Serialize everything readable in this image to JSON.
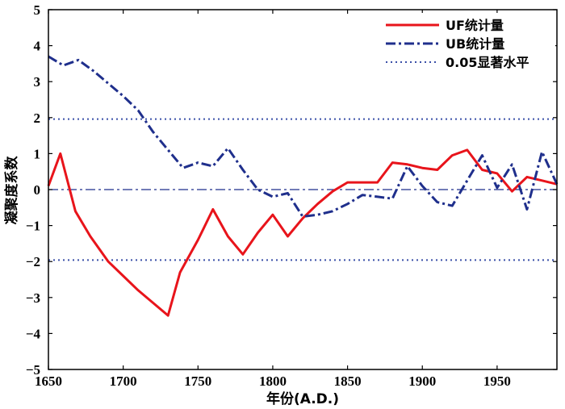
{
  "chart_data": {
    "type": "line",
    "xlabel": "年份(A.D.)",
    "ylabel": "凝聚度系数",
    "xlim": [
      1650,
      1990
    ],
    "ylim": [
      -5,
      5
    ],
    "xticks": [
      1650,
      1700,
      1750,
      1800,
      1850,
      1900,
      1950
    ],
    "yticks": [
      -5,
      -4,
      -3,
      -2,
      -1,
      0,
      1,
      2,
      3,
      4,
      5
    ],
    "grid": false,
    "legend_position": "top-right",
    "series": [
      {
        "name": "UF统计量",
        "color": "#e8141b",
        "style": "solid",
        "points": [
          [
            1650,
            0.1
          ],
          [
            1658,
            1.0
          ],
          [
            1668,
            -0.6
          ],
          [
            1678,
            -1.3
          ],
          [
            1690,
            -2.0
          ],
          [
            1700,
            -2.4
          ],
          [
            1710,
            -2.8
          ],
          [
            1720,
            -3.15
          ],
          [
            1730,
            -3.5
          ],
          [
            1738,
            -2.3
          ],
          [
            1750,
            -1.4
          ],
          [
            1760,
            -0.55
          ],
          [
            1770,
            -1.3
          ],
          [
            1780,
            -1.8
          ],
          [
            1790,
            -1.2
          ],
          [
            1800,
            -0.7
          ],
          [
            1810,
            -1.3
          ],
          [
            1820,
            -0.8
          ],
          [
            1830,
            -0.4
          ],
          [
            1840,
            -0.05
          ],
          [
            1850,
            0.2
          ],
          [
            1860,
            0.2
          ],
          [
            1870,
            0.2
          ],
          [
            1880,
            0.75
          ],
          [
            1890,
            0.7
          ],
          [
            1900,
            0.6
          ],
          [
            1910,
            0.55
          ],
          [
            1920,
            0.95
          ],
          [
            1930,
            1.1
          ],
          [
            1940,
            0.55
          ],
          [
            1950,
            0.45
          ],
          [
            1960,
            -0.05
          ],
          [
            1970,
            0.35
          ],
          [
            1980,
            0.25
          ],
          [
            1990,
            0.15
          ]
        ]
      },
      {
        "name": "UB统计量",
        "color": "#1f2f8c",
        "style": "dashdot",
        "points": [
          [
            1650,
            3.7
          ],
          [
            1660,
            3.45
          ],
          [
            1670,
            3.6
          ],
          [
            1680,
            3.3
          ],
          [
            1690,
            2.95
          ],
          [
            1700,
            2.6
          ],
          [
            1710,
            2.2
          ],
          [
            1720,
            1.6
          ],
          [
            1730,
            1.1
          ],
          [
            1740,
            0.6
          ],
          [
            1750,
            0.75
          ],
          [
            1760,
            0.65
          ],
          [
            1770,
            1.15
          ],
          [
            1780,
            0.55
          ],
          [
            1790,
            0.0
          ],
          [
            1800,
            -0.2
          ],
          [
            1810,
            -0.1
          ],
          [
            1820,
            -0.75
          ],
          [
            1830,
            -0.7
          ],
          [
            1840,
            -0.6
          ],
          [
            1850,
            -0.4
          ],
          [
            1860,
            -0.15
          ],
          [
            1870,
            -0.2
          ],
          [
            1880,
            -0.25
          ],
          [
            1890,
            0.65
          ],
          [
            1900,
            0.1
          ],
          [
            1910,
            -0.35
          ],
          [
            1920,
            -0.45
          ],
          [
            1930,
            0.25
          ],
          [
            1940,
            0.95
          ],
          [
            1950,
            0.05
          ],
          [
            1960,
            0.7
          ],
          [
            1970,
            -0.55
          ],
          [
            1980,
            1.05
          ],
          [
            1990,
            0.15
          ]
        ]
      },
      {
        "name": "0.05显著水平",
        "color": "#3a4fa8",
        "style": "dotted",
        "hlines": [
          1.96,
          -1.96
        ]
      }
    ],
    "zero_line": {
      "y": 0,
      "color": "#1f2f8c",
      "style": "dashdot"
    }
  }
}
